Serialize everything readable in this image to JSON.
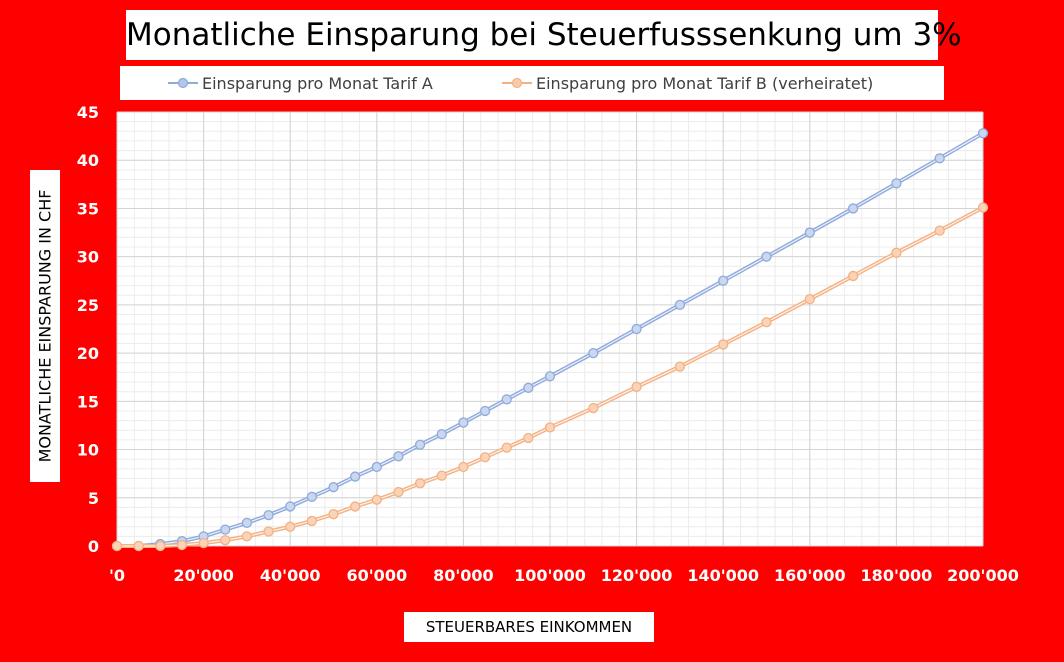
{
  "title": "Monatliche Einsparung bei Steuerfusssenkung um 3%",
  "chart_data": {
    "type": "line",
    "title": "Monatliche Einsparung bei Steuerfusssenkung um 3%",
    "xlabel": "STEUERBARES EINKOMMEN",
    "ylabel": "MONATLICHE EINSPARUNG IN CHF",
    "xlim": [
      0,
      200000
    ],
    "ylim": [
      0,
      45
    ],
    "x_ticks": [
      0,
      20000,
      40000,
      60000,
      80000,
      100000,
      120000,
      140000,
      160000,
      180000,
      200000
    ],
    "x_tick_labels": [
      "'0",
      "20'000",
      "40'000",
      "60'000",
      "80'000",
      "100'000",
      "120'000",
      "140'000",
      "160'000",
      "180'000",
      "200'000"
    ],
    "y_ticks": [
      0,
      5,
      10,
      15,
      20,
      25,
      30,
      35,
      40,
      45
    ],
    "y_tick_labels": [
      "0",
      "5",
      "10",
      "15",
      "20",
      "25",
      "30",
      "35",
      "40",
      "45"
    ],
    "grid": true,
    "legend_position": "top",
    "series": [
      {
        "name": "Einsparung pro Monat Tarif A",
        "color": "#8faadc",
        "x": [
          0,
          5000,
          10000,
          15000,
          20000,
          25000,
          30000,
          35000,
          40000,
          45000,
          50000,
          55000,
          60000,
          65000,
          70000,
          75000,
          80000,
          85000,
          90000,
          95000,
          100000,
          110000,
          120000,
          130000,
          140000,
          150000,
          160000,
          170000,
          180000,
          190000,
          200000
        ],
        "y": [
          0,
          0,
          0.2,
          0.5,
          1.0,
          1.7,
          2.4,
          3.2,
          4.1,
          5.1,
          6.1,
          7.2,
          8.2,
          9.3,
          10.5,
          11.6,
          12.8,
          14.0,
          15.2,
          16.4,
          17.6,
          20.0,
          22.5,
          25.0,
          27.5,
          30.0,
          32.5,
          35.0,
          37.6,
          40.2,
          42.8
        ]
      },
      {
        "name": "Einsparung pro Monat Tarif B (verheiratet)",
        "color": "#f4b183",
        "x": [
          0,
          5000,
          10000,
          15000,
          20000,
          25000,
          30000,
          35000,
          40000,
          45000,
          50000,
          55000,
          60000,
          65000,
          70000,
          75000,
          80000,
          85000,
          90000,
          95000,
          100000,
          110000,
          120000,
          130000,
          140000,
          150000,
          160000,
          170000,
          180000,
          190000,
          200000
        ],
        "y": [
          0,
          0,
          0,
          0.1,
          0.3,
          0.6,
          1.0,
          1.5,
          2.0,
          2.6,
          3.3,
          4.1,
          4.8,
          5.6,
          6.5,
          7.3,
          8.2,
          9.2,
          10.2,
          11.2,
          12.3,
          14.3,
          16.5,
          18.6,
          20.9,
          23.2,
          25.6,
          28.0,
          30.4,
          32.7,
          35.1
        ]
      }
    ]
  }
}
